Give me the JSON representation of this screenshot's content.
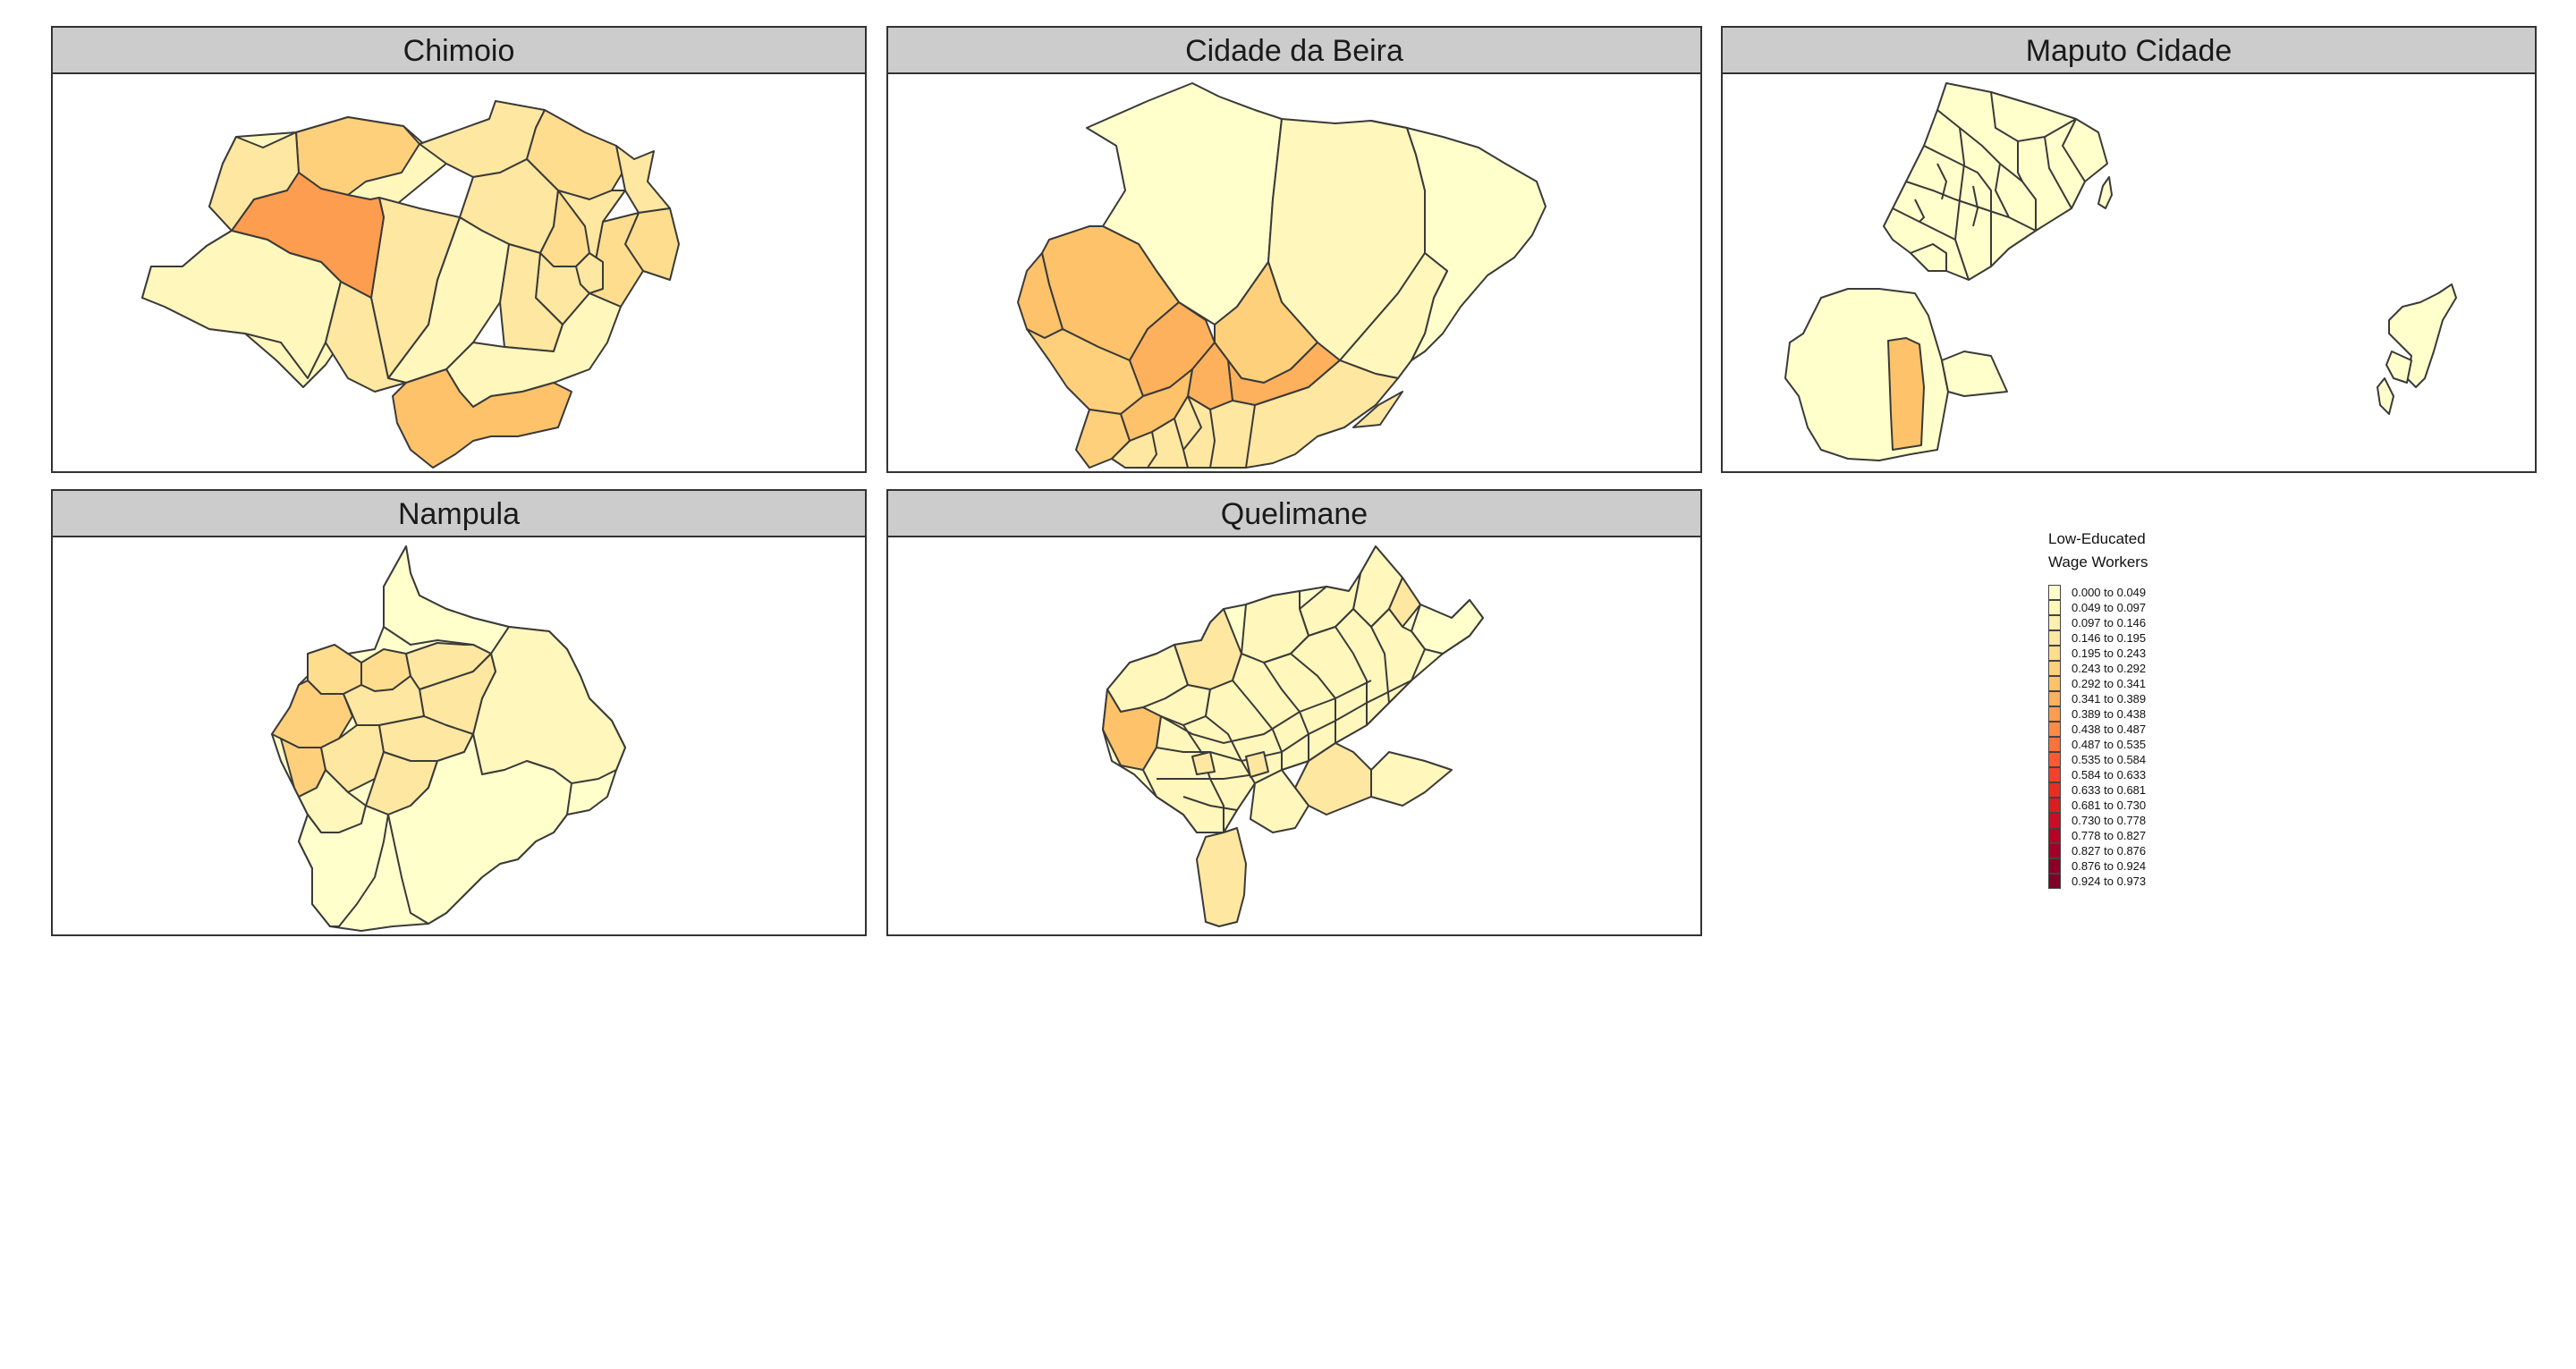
{
  "panels": [
    {
      "title": "Chimoio"
    },
    {
      "title": "Cidade da Beira"
    },
    {
      "title": "Maputo Cidade"
    },
    {
      "title": "Nampula"
    },
    {
      "title": "Quelimane"
    }
  ],
  "legend": {
    "title_line1": "Low-Educated",
    "title_line2": "Wage Workers",
    "items": [
      {
        "label": "0.000 to 0.049",
        "color": "#ffffcc"
      },
      {
        "label": "0.049 to 0.097",
        "color": "#fff7bc"
      },
      {
        "label": "0.097 to 0.146",
        "color": "#ffefb0"
      },
      {
        "label": "0.146 to 0.195",
        "color": "#fee7a0"
      },
      {
        "label": "0.195 to 0.243",
        "color": "#fedd8e"
      },
      {
        "label": "0.243 to 0.292",
        "color": "#fed07c"
      },
      {
        "label": "0.292 to 0.341",
        "color": "#fec26a"
      },
      {
        "label": "0.341 to 0.389",
        "color": "#feb15c"
      },
      {
        "label": "0.389 to 0.438",
        "color": "#fd9d4f"
      },
      {
        "label": "0.438 to 0.487",
        "color": "#fd8b45"
      },
      {
        "label": "0.487 to 0.535",
        "color": "#fc713c"
      },
      {
        "label": "0.535 to 0.584",
        "color": "#fa5a34"
      },
      {
        "label": "0.584 to 0.633",
        "color": "#f2422c"
      },
      {
        "label": "0.633 to 0.681",
        "color": "#e62f23"
      },
      {
        "label": "0.681 to 0.730",
        "color": "#d81e21"
      },
      {
        "label": "0.730 to 0.778",
        "color": "#c90f23"
      },
      {
        "label": "0.778 to 0.827",
        "color": "#b70426"
      },
      {
        "label": "0.827 to 0.876",
        "color": "#a20026"
      },
      {
        "label": "0.876 to 0.924",
        "color": "#8c0026"
      },
      {
        "label": "0.924 to 0.973",
        "color": "#800026"
      }
    ]
  }
}
